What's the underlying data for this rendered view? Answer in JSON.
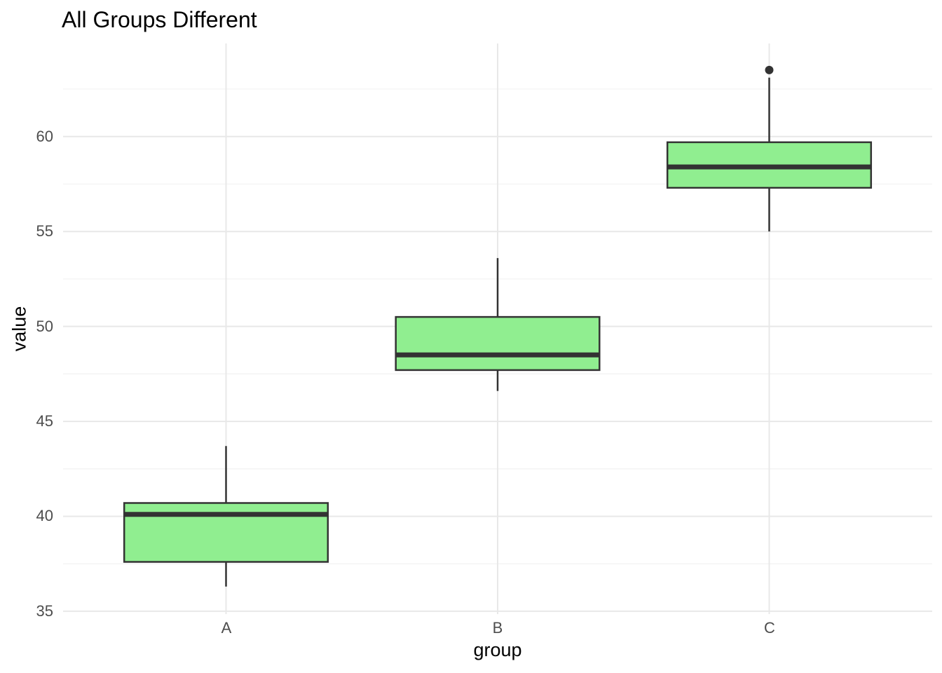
{
  "chart_data": {
    "type": "boxplot",
    "title": "All Groups Different",
    "xlabel": "group",
    "ylabel": "value",
    "categories": [
      "A",
      "B",
      "C"
    ],
    "ylim": [
      34.85,
      64.9
    ],
    "yticks_major": [
      35,
      40,
      45,
      50,
      55,
      60
    ],
    "yticks_minor": [
      37.5,
      42.5,
      47.5,
      52.5,
      57.5,
      62.5
    ],
    "grid": "horizontal major+minor gridlines, vertical major gridlines at categories, no axis lines, no tick marks, white background",
    "legend": "none",
    "series": [
      {
        "group": "A",
        "whisker_low": 36.3,
        "q1": 37.6,
        "median": 40.1,
        "q3": 40.7,
        "whisker_high": 43.7,
        "outliers": []
      },
      {
        "group": "B",
        "whisker_low": 46.6,
        "q1": 47.7,
        "median": 48.5,
        "q3": 50.5,
        "whisker_high": 53.6,
        "outliers": []
      },
      {
        "group": "C",
        "whisker_low": 55.0,
        "q1": 57.3,
        "median": 58.4,
        "q3": 59.7,
        "whisker_high": 63.1,
        "outliers": [
          63.5
        ]
      }
    ],
    "colors": {
      "background": "#FFFFFF",
      "box_fill": "#90EE90",
      "box_stroke": "#333333",
      "median": "#333333",
      "whisker": "#333333",
      "outlier": "#333333",
      "grid_major": "#E8E8E8",
      "grid_minor": "#F3F3F3",
      "tick_label": "#4D4D4D",
      "text": "#000000"
    }
  }
}
